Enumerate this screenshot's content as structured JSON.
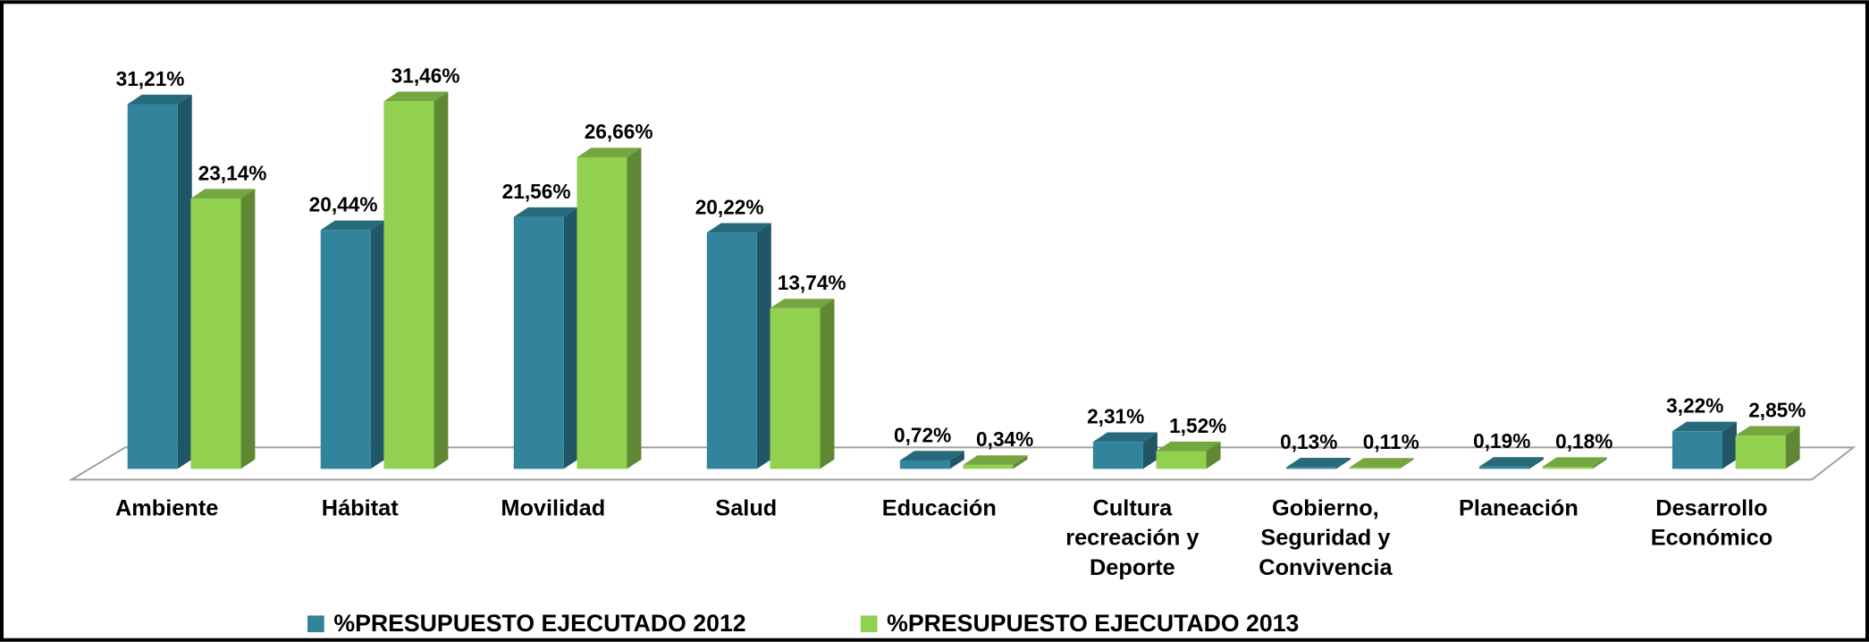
{
  "chart_data": {
    "type": "bar3d",
    "categories": [
      "Ambiente",
      "Hábitat",
      "Movilidad",
      "Salud",
      "Educación",
      "Cultura recreación y Deporte",
      "Gobierno, Seguridad y Convivencia",
      "Planeación",
      "Desarrollo Económico"
    ],
    "series": [
      {
        "name": "%PRESUPUESTO EJECUTADO 2012",
        "color": "#31849b",
        "values": [
          31.21,
          20.44,
          21.56,
          20.22,
          0.72,
          2.31,
          0.13,
          0.19,
          3.22
        ],
        "value_labels": [
          "31,21%",
          "20,44%",
          "21,56%",
          "20,22%",
          "0,72%",
          "2,31%",
          "0,13%",
          "0,19%",
          "3,22%"
        ]
      },
      {
        "name": "%PRESUPUESTO EJECUTADO 2013",
        "color": "#92d050",
        "values": [
          23.14,
          31.46,
          26.66,
          13.74,
          0.34,
          1.52,
          0.11,
          0.18,
          2.85
        ],
        "value_labels": [
          "23,14%",
          "31,46%",
          "26,66%",
          "13,74%",
          "0,34%",
          "1,52%",
          "0,11%",
          "0,18%",
          "2,85%"
        ]
      }
    ]
  }
}
